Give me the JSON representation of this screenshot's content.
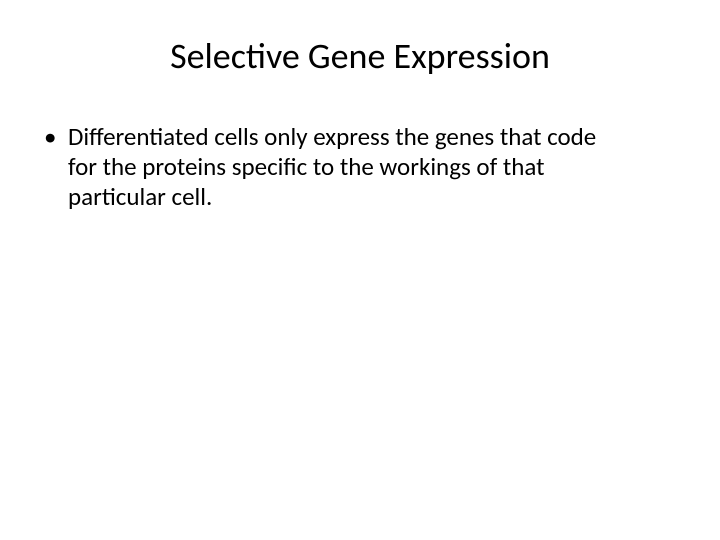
{
  "slide": {
    "title": "Selective Gene Expression",
    "bullets": [
      "Differentiated cells only express the genes that code for the proteins specific to the workings of that particular cell."
    ],
    "colors": {
      "background": "#ffffff",
      "text": "#000000"
    },
    "typography": {
      "title_fontsize_pt": 36,
      "body_fontsize_pt": 25,
      "font_family": "Calibri"
    }
  }
}
